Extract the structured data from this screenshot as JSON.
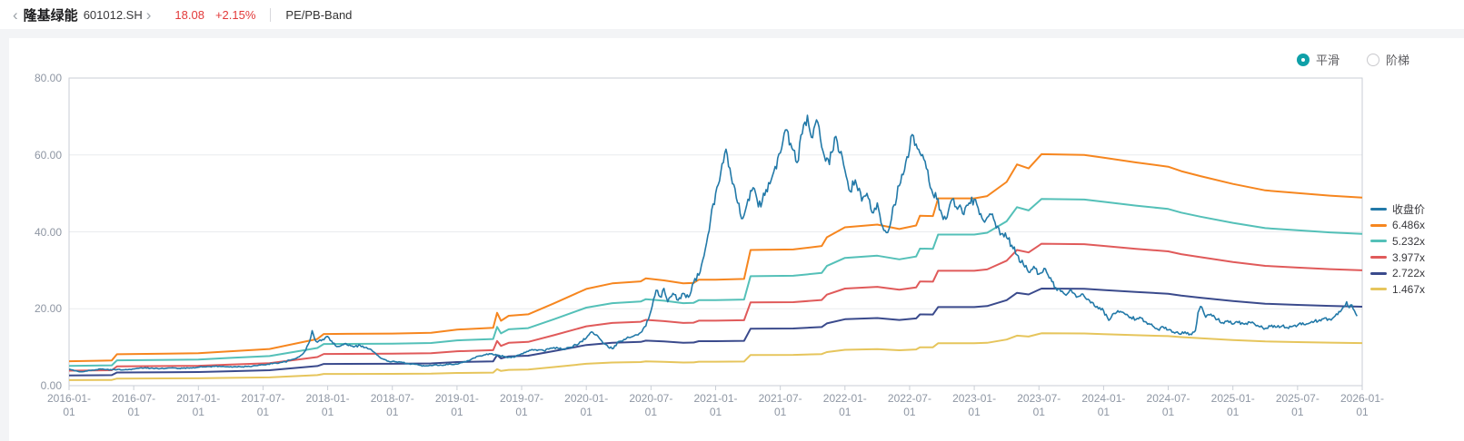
{
  "header": {
    "back_icon": "‹",
    "stock_name": "隆基绿能",
    "stock_code": "601012.SH",
    "next_icon": "›",
    "price": "18.08",
    "change_percent": "+2.15%",
    "view_title": "PE/PB-Band",
    "price_color": "#e23a3a"
  },
  "controls": {
    "accent_color": "#0fa0a8",
    "mode_options": [
      {
        "label": "平滑",
        "selected": true
      },
      {
        "label": "阶梯",
        "selected": false
      }
    ]
  },
  "chart_data": {
    "type": "line",
    "title": "PE/PB-Band",
    "grid": true,
    "legend_position": "right",
    "ylim": [
      0,
      80
    ],
    "y_ticks": [
      "80.00",
      "60.00",
      "40.00",
      "20.00",
      "0.00"
    ],
    "x_range_years": [
      2016.0,
      2026.0
    ],
    "x_ticks": [
      "2016-01-01",
      "2016-07-01",
      "2017-01-01",
      "2017-07-01",
      "2018-01-01",
      "2018-07-01",
      "2019-01-01",
      "2019-07-01",
      "2020-01-01",
      "2020-07-01",
      "2021-01-01",
      "2021-07-01",
      "2022-01-01",
      "2022-07-01",
      "2023-01-01",
      "2023-07-01",
      "2024-01-01",
      "2024-07-01",
      "2025-01-01",
      "2025-07-01",
      "2026-01-01"
    ],
    "close_series": {
      "name": "收盘价",
      "color": "#2279a8",
      "end_value": 18.08,
      "noise_amp": 0.026,
      "anchors": [
        [
          2016.0,
          4.3
        ],
        [
          2016.04,
          3.9
        ],
        [
          2016.08,
          3.6
        ],
        [
          2016.13,
          3.8
        ],
        [
          2016.17,
          3.95
        ],
        [
          2016.21,
          4.15
        ],
        [
          2016.25,
          4.3
        ],
        [
          2016.29,
          4.2
        ],
        [
          2016.33,
          4.1
        ],
        [
          2016.38,
          4.25
        ],
        [
          2016.42,
          4.1
        ],
        [
          2016.46,
          4.2
        ],
        [
          2016.5,
          4.35
        ],
        [
          2016.54,
          4.5
        ],
        [
          2016.58,
          4.6
        ],
        [
          2016.63,
          4.5
        ],
        [
          2016.67,
          4.55
        ],
        [
          2016.71,
          4.45
        ],
        [
          2016.75,
          4.5
        ],
        [
          2016.79,
          4.6
        ],
        [
          2016.83,
          4.55
        ],
        [
          2016.88,
          4.5
        ],
        [
          2016.92,
          4.6
        ],
        [
          2016.96,
          4.7
        ],
        [
          2017.0,
          4.8
        ],
        [
          2017.04,
          4.9
        ],
        [
          2017.08,
          4.95
        ],
        [
          2017.13,
          5.05
        ],
        [
          2017.17,
          5.0
        ],
        [
          2017.21,
          4.9
        ],
        [
          2017.25,
          4.95
        ],
        [
          2017.29,
          4.9
        ],
        [
          2017.33,
          4.85
        ],
        [
          2017.38,
          5.0
        ],
        [
          2017.42,
          5.1
        ],
        [
          2017.46,
          5.25
        ],
        [
          2017.5,
          5.4
        ],
        [
          2017.54,
          5.6
        ],
        [
          2017.58,
          5.8
        ],
        [
          2017.63,
          6.0
        ],
        [
          2017.67,
          6.2
        ],
        [
          2017.71,
          6.6
        ],
        [
          2017.75,
          7.0
        ],
        [
          2017.79,
          7.8
        ],
        [
          2017.83,
          9.2
        ],
        [
          2017.86,
          11.5
        ],
        [
          2017.88,
          14.3
        ],
        [
          2017.9,
          12.0
        ],
        [
          2017.92,
          11.3
        ],
        [
          2017.96,
          12.0
        ],
        [
          2018.0,
          12.8
        ],
        [
          2018.04,
          11.0
        ],
        [
          2018.08,
          10.2
        ],
        [
          2018.13,
          10.9
        ],
        [
          2018.17,
          10.6
        ],
        [
          2018.21,
          10.2
        ],
        [
          2018.25,
          10.5
        ],
        [
          2018.29,
          9.9
        ],
        [
          2018.33,
          9.5
        ],
        [
          2018.38,
          8.0
        ],
        [
          2018.42,
          7.0
        ],
        [
          2018.46,
          6.4
        ],
        [
          2018.5,
          6.3
        ],
        [
          2018.54,
          6.1
        ],
        [
          2018.58,
          6.0
        ],
        [
          2018.63,
          5.7
        ],
        [
          2018.67,
          5.6
        ],
        [
          2018.71,
          5.3
        ],
        [
          2018.75,
          5.1
        ],
        [
          2018.79,
          5.3
        ],
        [
          2018.83,
          5.45
        ],
        [
          2018.88,
          5.3
        ],
        [
          2018.92,
          5.6
        ],
        [
          2018.96,
          5.5
        ],
        [
          2019.0,
          5.6
        ],
        [
          2019.04,
          6.0
        ],
        [
          2019.08,
          6.5
        ],
        [
          2019.13,
          7.2
        ],
        [
          2019.17,
          7.7
        ],
        [
          2019.21,
          8.0
        ],
        [
          2019.25,
          8.3
        ],
        [
          2019.29,
          8.0
        ],
        [
          2019.33,
          7.8
        ],
        [
          2019.38,
          7.4
        ],
        [
          2019.42,
          7.3
        ],
        [
          2019.46,
          7.8
        ],
        [
          2019.5,
          8.3
        ],
        [
          2019.54,
          8.9
        ],
        [
          2019.58,
          9.4
        ],
        [
          2019.63,
          9.3
        ],
        [
          2019.67,
          9.1
        ],
        [
          2019.71,
          9.5
        ],
        [
          2019.75,
          9.9
        ],
        [
          2019.79,
          9.6
        ],
        [
          2019.83,
          9.4
        ],
        [
          2019.88,
          10.0
        ],
        [
          2019.92,
          10.6
        ],
        [
          2019.96,
          11.5
        ],
        [
          2020.0,
          12.4
        ],
        [
          2020.04,
          14.0
        ],
        [
          2020.08,
          13.2
        ],
        [
          2020.13,
          11.0
        ],
        [
          2020.17,
          10.0
        ],
        [
          2020.21,
          9.7
        ],
        [
          2020.25,
          11.5
        ],
        [
          2020.29,
          12.0
        ],
        [
          2020.33,
          12.5
        ],
        [
          2020.38,
          13.2
        ],
        [
          2020.42,
          13.8
        ],
        [
          2020.46,
          15.5
        ],
        [
          2020.5,
          19.5
        ],
        [
          2020.52,
          22.5
        ],
        [
          2020.54,
          24.8
        ],
        [
          2020.58,
          23.0
        ],
        [
          2020.6,
          25.3
        ],
        [
          2020.63,
          21.8
        ],
        [
          2020.67,
          24.0
        ],
        [
          2020.71,
          22.2
        ],
        [
          2020.75,
          24.0
        ],
        [
          2020.79,
          23.0
        ],
        [
          2020.83,
          26.8
        ],
        [
          2020.88,
          29.5
        ],
        [
          2020.92,
          35.5
        ],
        [
          2020.96,
          43.0
        ],
        [
          2021.0,
          50.0
        ],
        [
          2021.04,
          55.5
        ],
        [
          2021.08,
          61.5
        ],
        [
          2021.1,
          57.0
        ],
        [
          2021.13,
          52.5
        ],
        [
          2021.17,
          47.5
        ],
        [
          2021.21,
          43.5
        ],
        [
          2021.25,
          48.5
        ],
        [
          2021.29,
          51.5
        ],
        [
          2021.33,
          46.5
        ],
        [
          2021.38,
          49.5
        ],
        [
          2021.42,
          52.5
        ],
        [
          2021.46,
          57.0
        ],
        [
          2021.5,
          60.5
        ],
        [
          2021.52,
          63.5
        ],
        [
          2021.54,
          66.5
        ],
        [
          2021.58,
          63.0
        ],
        [
          2021.63,
          58.0
        ],
        [
          2021.67,
          65.5
        ],
        [
          2021.71,
          70.3
        ],
        [
          2021.73,
          66.0
        ],
        [
          2021.75,
          64.5
        ],
        [
          2021.79,
          68.5
        ],
        [
          2021.83,
          61.0
        ],
        [
          2021.88,
          57.5
        ],
        [
          2021.92,
          64.5
        ],
        [
          2021.96,
          60.5
        ],
        [
          2022.0,
          56.0
        ],
        [
          2022.04,
          50.5
        ],
        [
          2022.08,
          53.5
        ],
        [
          2022.13,
          48.0
        ],
        [
          2022.17,
          50.0
        ],
        [
          2022.21,
          45.0
        ],
        [
          2022.25,
          47.5
        ],
        [
          2022.29,
          41.5
        ],
        [
          2022.33,
          39.8
        ],
        [
          2022.38,
          47.0
        ],
        [
          2022.42,
          52.0
        ],
        [
          2022.46,
          56.0
        ],
        [
          2022.5,
          61.5
        ],
        [
          2022.52,
          65.3
        ],
        [
          2022.54,
          62.5
        ],
        [
          2022.58,
          60.5
        ],
        [
          2022.63,
          56.5
        ],
        [
          2022.67,
          51.0
        ],
        [
          2022.71,
          48.5
        ],
        [
          2022.75,
          44.5
        ],
        [
          2022.79,
          43.8
        ],
        [
          2022.83,
          48.5
        ],
        [
          2022.88,
          46.5
        ],
        [
          2022.92,
          44.5
        ],
        [
          2022.96,
          47.5
        ],
        [
          2023.0,
          48.5
        ],
        [
          2023.04,
          44.5
        ],
        [
          2023.08,
          42.5
        ],
        [
          2023.13,
          44.5
        ],
        [
          2023.17,
          41.0
        ],
        [
          2023.21,
          39.5
        ],
        [
          2023.25,
          38.5
        ],
        [
          2023.29,
          36.5
        ],
        [
          2023.33,
          34.0
        ],
        [
          2023.38,
          31.5
        ],
        [
          2023.42,
          29.5
        ],
        [
          2023.46,
          31.0
        ],
        [
          2023.5,
          29.0
        ],
        [
          2023.54,
          30.5
        ],
        [
          2023.58,
          28.0
        ],
        [
          2023.63,
          25.5
        ],
        [
          2023.67,
          24.5
        ],
        [
          2023.71,
          23.5
        ],
        [
          2023.75,
          24.8
        ],
        [
          2023.79,
          23.0
        ],
        [
          2023.83,
          23.8
        ],
        [
          2023.88,
          22.5
        ],
        [
          2023.92,
          21.5
        ],
        [
          2023.96,
          20.0
        ],
        [
          2024.0,
          19.5
        ],
        [
          2024.04,
          17.0
        ],
        [
          2024.08,
          18.8
        ],
        [
          2024.13,
          19.3
        ],
        [
          2024.17,
          18.5
        ],
        [
          2024.21,
          17.8
        ],
        [
          2024.25,
          17.2
        ],
        [
          2024.29,
          17.6
        ],
        [
          2024.33,
          16.5
        ],
        [
          2024.38,
          15.5
        ],
        [
          2024.42,
          14.6
        ],
        [
          2024.46,
          15.3
        ],
        [
          2024.5,
          14.5
        ],
        [
          2024.54,
          13.9
        ],
        [
          2024.58,
          13.6
        ],
        [
          2024.63,
          14.0
        ],
        [
          2024.67,
          13.4
        ],
        [
          2024.71,
          14.3
        ],
        [
          2024.73,
          19.0
        ],
        [
          2024.75,
          20.6
        ],
        [
          2024.79,
          17.8
        ],
        [
          2024.83,
          18.6
        ],
        [
          2024.88,
          17.2
        ],
        [
          2024.92,
          16.4
        ],
        [
          2024.96,
          16.9
        ],
        [
          2025.0,
          16.0
        ],
        [
          2025.04,
          16.4
        ],
        [
          2025.08,
          16.1
        ],
        [
          2025.13,
          16.5
        ],
        [
          2025.17,
          15.9
        ],
        [
          2025.21,
          15.3
        ],
        [
          2025.25,
          14.9
        ],
        [
          2025.29,
          15.4
        ],
        [
          2025.33,
          15.2
        ],
        [
          2025.38,
          15.5
        ],
        [
          2025.42,
          15.1
        ],
        [
          2025.46,
          15.4
        ],
        [
          2025.5,
          15.7
        ],
        [
          2025.54,
          16.3
        ],
        [
          2025.58,
          16.1
        ],
        [
          2025.63,
          16.7
        ],
        [
          2025.67,
          17.1
        ],
        [
          2025.71,
          17.6
        ],
        [
          2025.75,
          17.3
        ],
        [
          2025.79,
          18.1
        ],
        [
          2025.83,
          19.2
        ],
        [
          2025.86,
          20.5
        ],
        [
          2025.88,
          21.8
        ],
        [
          2025.9,
          20.3
        ],
        [
          2025.92,
          21.0
        ],
        [
          2025.96,
          18.08
        ]
      ]
    },
    "band_series": [
      {
        "name": "6.486x",
        "multiple": 6.486,
        "color": "#f6861f"
      },
      {
        "name": "5.232x",
        "multiple": 5.232,
        "color": "#54c0b8"
      },
      {
        "name": "3.977x",
        "multiple": 3.977,
        "color": "#e05a5a"
      },
      {
        "name": "2.722x",
        "multiple": 2.722,
        "color": "#3a4a8c"
      },
      {
        "name": "1.467x",
        "multiple": 1.467,
        "color": "#e6c55c"
      }
    ],
    "book_value_per_share_knots": [
      [
        2016.0,
        0.98
      ],
      [
        2016.25,
        1.0
      ],
      [
        2016.33,
        1.01
      ],
      [
        2016.37,
        1.26
      ],
      [
        2016.75,
        1.28
      ],
      [
        2017.0,
        1.3
      ],
      [
        2017.25,
        1.38
      ],
      [
        2017.55,
        1.47
      ],
      [
        2017.92,
        1.87
      ],
      [
        2017.97,
        2.07
      ],
      [
        2018.5,
        2.09
      ],
      [
        2018.8,
        2.12
      ],
      [
        2019.0,
        2.25
      ],
      [
        2019.28,
        2.32
      ],
      [
        2019.31,
        2.92
      ],
      [
        2019.34,
        2.6
      ],
      [
        2019.4,
        2.8
      ],
      [
        2019.55,
        2.86
      ],
      [
        2019.75,
        3.3
      ],
      [
        2020.0,
        3.88
      ],
      [
        2020.2,
        4.1
      ],
      [
        2020.42,
        4.18
      ],
      [
        2020.46,
        4.3
      ],
      [
        2020.6,
        4.22
      ],
      [
        2020.75,
        4.1
      ],
      [
        2020.83,
        4.12
      ],
      [
        2020.87,
        4.25
      ],
      [
        2021.0,
        4.25
      ],
      [
        2021.22,
        4.28
      ],
      [
        2021.27,
        5.44
      ],
      [
        2021.6,
        5.46
      ],
      [
        2021.82,
        5.6
      ],
      [
        2021.86,
        5.95
      ],
      [
        2022.0,
        6.35
      ],
      [
        2022.25,
        6.46
      ],
      [
        2022.42,
        6.28
      ],
      [
        2022.55,
        6.42
      ],
      [
        2022.58,
        6.81
      ],
      [
        2022.68,
        6.8
      ],
      [
        2022.72,
        7.51
      ],
      [
        2023.0,
        7.51
      ],
      [
        2023.1,
        7.6
      ],
      [
        2023.25,
        8.17
      ],
      [
        2023.33,
        8.87
      ],
      [
        2023.42,
        8.71
      ],
      [
        2023.52,
        9.28
      ],
      [
        2023.85,
        9.25
      ],
      [
        2024.0,
        9.14
      ],
      [
        2024.25,
        8.95
      ],
      [
        2024.5,
        8.78
      ],
      [
        2024.6,
        8.6
      ],
      [
        2024.75,
        8.4
      ],
      [
        2025.0,
        8.09
      ],
      [
        2025.25,
        7.83
      ],
      [
        2025.5,
        7.72
      ],
      [
        2025.75,
        7.62
      ],
      [
        2026.0,
        7.54
      ]
    ]
  }
}
